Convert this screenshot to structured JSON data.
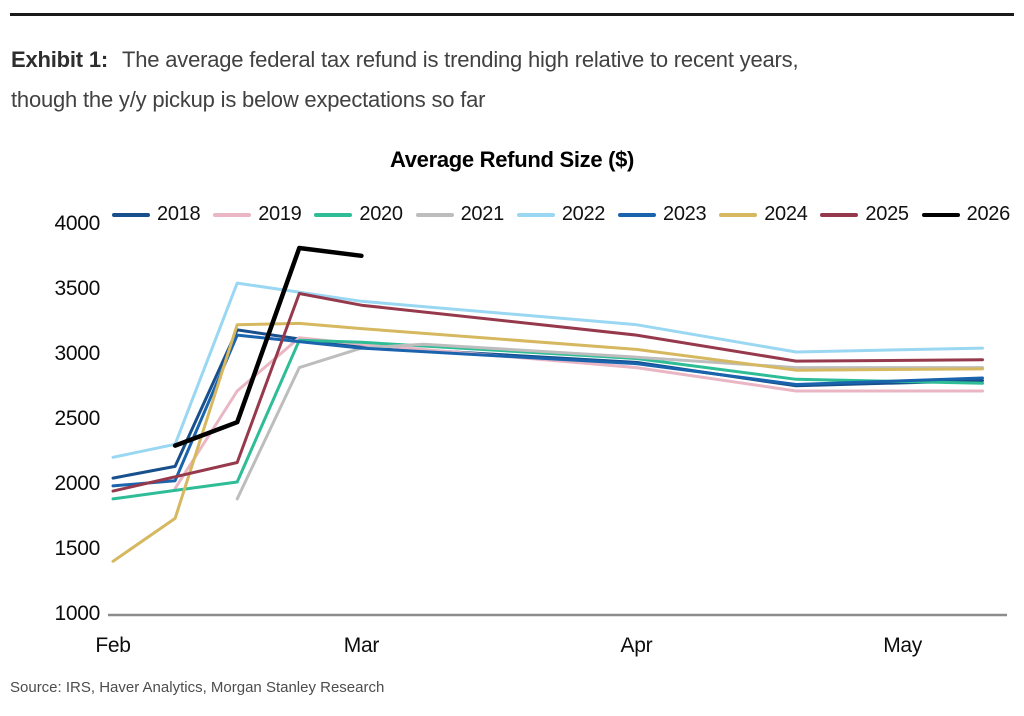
{
  "exhibit": {
    "label": "Exhibit 1:",
    "line1": "The average federal tax refund is trending high relative to recent years,",
    "line2": "though the y/y pickup is below expectations so far"
  },
  "source_text": "Source: IRS, Haver Analytics, Morgan Stanley Research",
  "chart_data": {
    "type": "line",
    "title": "Average Refund Size ($)",
    "xlabel": "",
    "ylabel": "",
    "x_unit": "day_of_year",
    "xlim": [
      32,
      133
    ],
    "ylim": [
      1000,
      4000
    ],
    "grid": false,
    "legend_position": "top",
    "axis_color": "#8C8C8C",
    "y_ticks": [
      1000,
      1500,
      2000,
      2500,
      3000,
      3500,
      4000
    ],
    "x_ticks": [
      {
        "label": "Feb",
        "day": 32
      },
      {
        "label": "Mar",
        "day": 60
      },
      {
        "label": "Apr",
        "day": 91
      },
      {
        "label": "May",
        "day": 121
      }
    ],
    "series": [
      {
        "name": "2018",
        "color": "#17508C",
        "width": 3,
        "points": [
          [
            32,
            2030
          ],
          [
            39,
            2120
          ],
          [
            46,
            3170
          ],
          [
            53,
            3100
          ],
          [
            60,
            3040
          ],
          [
            91,
            2920
          ],
          [
            109,
            2740
          ],
          [
            130,
            2780
          ]
        ]
      },
      {
        "name": "2019",
        "color": "#EAB6C4",
        "width": 3,
        "points": [
          [
            39,
            1950
          ],
          [
            46,
            2700
          ],
          [
            53,
            3110
          ],
          [
            60,
            3060
          ],
          [
            91,
            2880
          ],
          [
            109,
            2700
          ],
          [
            130,
            2700
          ]
        ]
      },
      {
        "name": "2020",
        "color": "#2EBD96",
        "width": 3,
        "points": [
          [
            32,
            1870
          ],
          [
            39,
            1935
          ],
          [
            46,
            2000
          ],
          [
            53,
            3090
          ],
          [
            60,
            3075
          ],
          [
            91,
            2950
          ],
          [
            109,
            2790
          ],
          [
            130,
            2760
          ]
        ]
      },
      {
        "name": "2021",
        "color": "#BDBDBD",
        "width": 3,
        "points": [
          [
            46,
            1870
          ],
          [
            53,
            2880
          ],
          [
            60,
            3030
          ],
          [
            67,
            3060
          ],
          [
            91,
            2960
          ],
          [
            109,
            2880
          ],
          [
            130,
            2880
          ]
        ]
      },
      {
        "name": "2022",
        "color": "#9AD7F2",
        "width": 3,
        "points": [
          [
            32,
            2190
          ],
          [
            39,
            2290
          ],
          [
            46,
            3530
          ],
          [
            60,
            3390
          ],
          [
            91,
            3210
          ],
          [
            109,
            3000
          ],
          [
            130,
            3030
          ]
        ]
      },
      {
        "name": "2023",
        "color": "#1A64AE",
        "width": 3,
        "points": [
          [
            32,
            1970
          ],
          [
            39,
            2010
          ],
          [
            46,
            3130
          ],
          [
            53,
            3080
          ],
          [
            60,
            3030
          ],
          [
            91,
            2910
          ],
          [
            109,
            2750
          ],
          [
            130,
            2800
          ]
        ]
      },
      {
        "name": "2024",
        "color": "#D6B860",
        "width": 3,
        "points": [
          [
            32,
            1390
          ],
          [
            39,
            1720
          ],
          [
            46,
            3210
          ],
          [
            53,
            3220
          ],
          [
            60,
            3180
          ],
          [
            91,
            3020
          ],
          [
            109,
            2860
          ],
          [
            130,
            2870
          ]
        ]
      },
      {
        "name": "2025",
        "color": "#96394C",
        "width": 3,
        "points": [
          [
            32,
            1930
          ],
          [
            46,
            2150
          ],
          [
            53,
            3450
          ],
          [
            60,
            3360
          ],
          [
            91,
            3130
          ],
          [
            109,
            2930
          ],
          [
            130,
            2940
          ]
        ]
      },
      {
        "name": "2026",
        "color": "#000000",
        "width": 4.5,
        "points": [
          [
            39,
            2280
          ],
          [
            46,
            2460
          ],
          [
            53,
            3800
          ],
          [
            60,
            3740
          ]
        ]
      }
    ]
  }
}
